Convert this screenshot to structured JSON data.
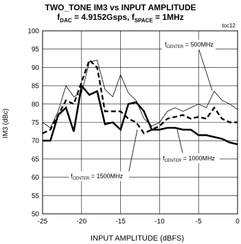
{
  "chart_data": {
    "type": "line",
    "title_line1": "TWO_TONE IM3 vs INPUT AMPLITUDE",
    "title_line2": {
      "f1": "f",
      "f1_sub": "DAC",
      "f1_val": " = 4.9152Gsps, ",
      "f2": "f",
      "f2_sub": "SPACE",
      "f2_val": " = 1MHz"
    },
    "figure_id": "toc12",
    "xlabel": "INPUT AMPLITUDE (dBFS)",
    "ylabel": "IM3 (dBc)",
    "xlim": [
      -25,
      0
    ],
    "ylim": [
      50,
      100
    ],
    "x_ticks": [
      -25,
      -20,
      -15,
      -10,
      -5,
      0
    ],
    "y_ticks": [
      50,
      55,
      60,
      65,
      70,
      75,
      80,
      85,
      90,
      95,
      100
    ],
    "grid": true,
    "series": [
      {
        "name": "fCENTER = 500MHz",
        "label": {
          "f": "f",
          "sub": "CENTER",
          "val": " = 500MHz"
        },
        "style": "thin",
        "x": [
          -25,
          -24,
          -23,
          -22,
          -21,
          -20,
          -19,
          -18,
          -17,
          -16,
          -15,
          -14,
          -13,
          -12,
          -11,
          -10,
          -9,
          -8,
          -7,
          -6,
          -5,
          -4,
          -3,
          -2,
          -1,
          0
        ],
        "y": [
          75,
          73.5,
          78,
          85,
          82,
          83,
          91.5,
          92,
          84,
          82,
          88,
          83,
          81,
          76,
          74,
          75,
          78,
          79,
          78,
          79,
          80,
          79,
          83.5,
          81,
          80,
          78.5
        ]
      },
      {
        "name": "fCENTER = 1000MHz",
        "label": {
          "f": "f",
          "sub": "CENTER",
          "val": " = 1000MHz"
        },
        "style": "dashed",
        "x": [
          -25,
          -24,
          -23,
          -22,
          -21,
          -20,
          -19,
          -18,
          -17,
          -16,
          -15,
          -14,
          -13,
          -12,
          -11,
          -10,
          -9,
          -8,
          -7,
          -6,
          -5,
          -4,
          -3,
          -2,
          -1,
          0
        ],
        "y": [
          72,
          73,
          77,
          81,
          80,
          86,
          92,
          90,
          78,
          78,
          78,
          76,
          75,
          72,
          73,
          74,
          76,
          76.5,
          77,
          76,
          76.5,
          76,
          79,
          76,
          75,
          75
        ]
      },
      {
        "name": "fCENTER = 1500MHz",
        "label": {
          "f": "f",
          "sub": "CENTER",
          "val": " = 1500MHz"
        },
        "style": "thick",
        "x": [
          -25,
          -24,
          -23,
          -22,
          -21,
          -20,
          -19,
          -18,
          -17,
          -16,
          -15,
          -14,
          -13,
          -12,
          -11,
          -10,
          -9,
          -8,
          -7,
          -6,
          -5,
          -4,
          -3,
          -2,
          -1,
          0
        ],
        "y": [
          70,
          70,
          77,
          79,
          72.5,
          85,
          82.5,
          83.5,
          74.5,
          75,
          73,
          80,
          80.5,
          78,
          73,
          73,
          73.5,
          73.5,
          73,
          73,
          71.5,
          71.5,
          71,
          70.5,
          69.5,
          69
        ]
      }
    ]
  }
}
